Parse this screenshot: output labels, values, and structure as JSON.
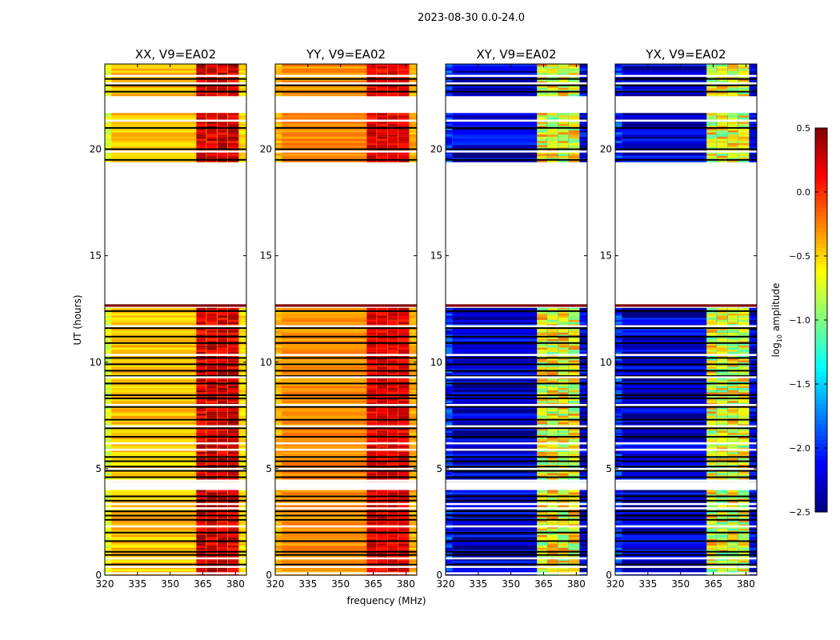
{
  "chart_data": {
    "type": "heatmap",
    "suptitle": "2023-08-30 0.0-24.0",
    "xlabel": "frequency (MHz)",
    "ylabel": "UT (hours)",
    "xlim": [
      320,
      385
    ],
    "ylim": [
      0,
      24
    ],
    "xticks": [
      320,
      335,
      350,
      365,
      380
    ],
    "yticks": [
      0,
      5,
      10,
      15,
      20
    ],
    "colorbar": {
      "label_main": "log",
      "label_sub": "10",
      "label_rest": " amplitude",
      "range": [
        -2.5,
        0.5
      ],
      "ticks": [
        "0.5",
        "0.0",
        "−0.5",
        "−1.0",
        "−1.5",
        "−2.0",
        "−2.5"
      ],
      "tick_values": [
        0.5,
        0.0,
        -0.5,
        -1.0,
        -1.5,
        -2.0,
        -2.5
      ],
      "colormap": "jet"
    },
    "data_time_ranges": [
      [
        0,
        4.0
      ],
      [
        4.4,
        12.55
      ],
      [
        19.4,
        21.7
      ],
      [
        22.5,
        24
      ]
    ],
    "flagged_rows_ut": [
      0.5,
      0.95,
      1.1,
      1.6,
      2.0,
      2.6,
      2.8,
      3.0,
      3.5,
      3.7,
      4.6,
      4.9,
      5.1,
      5.35,
      5.55,
      6.5,
      6.9,
      7.3,
      7.9,
      8.3,
      8.45,
      9.0,
      9.35,
      9.6,
      9.9,
      10.2,
      10.9,
      11.2,
      11.6,
      12.4,
      19.5,
      20.0,
      21.0,
      22.7,
      23.0,
      23.3
    ],
    "blank_rows_ut": [
      0.1,
      0.4,
      0.8,
      2.3,
      3.15,
      3.35,
      4.45,
      5.0,
      5.9,
      6.2,
      7.0,
      8.0,
      9.3,
      10.35,
      11.7,
      19.9,
      21.35,
      23.1,
      23.45
    ],
    "high_amplitude_row_ut": [
      12.6,
      12.72
    ],
    "subbands_mhz": [
      [
        362,
        366.5
      ],
      [
        366.7,
        371.5
      ],
      [
        371.7,
        376.3
      ],
      [
        376.5,
        381.5
      ]
    ],
    "panels": [
      {
        "title": "XX, V9=EA02",
        "edge_value": -0.75,
        "base_value": -0.45,
        "subband_value": 0.25,
        "gap_value": -0.5,
        "noise": 0.15
      },
      {
        "title": "YY, V9=EA02",
        "edge_value": -0.4,
        "base_value": -0.3,
        "subband_value": 0.2,
        "gap_value": -0.3,
        "noise": 0.12
      },
      {
        "title": "XY, V9=EA02",
        "edge_value": -2.0,
        "base_value": -2.25,
        "subband_value": -0.65,
        "gap_value": -1.4,
        "noise": 0.3
      },
      {
        "title": "YX, V9=EA02",
        "edge_value": -2.0,
        "base_value": -2.25,
        "subband_value": -0.7,
        "gap_value": -1.4,
        "noise": 0.3
      }
    ]
  }
}
